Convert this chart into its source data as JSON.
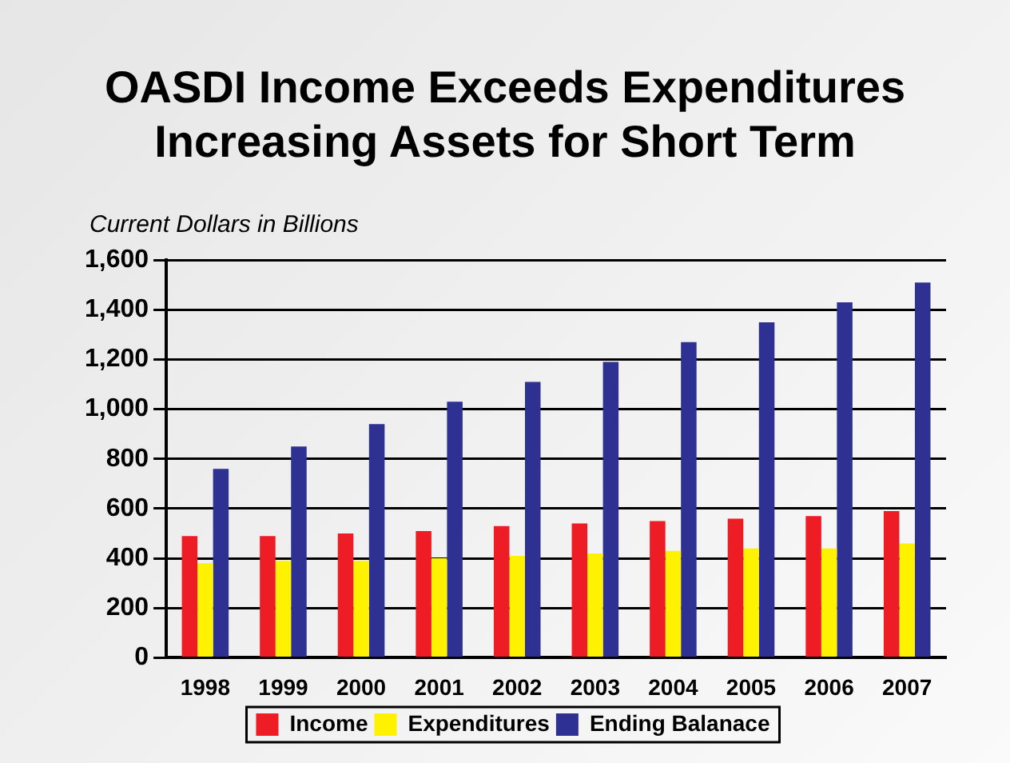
{
  "chart_data": {
    "type": "bar",
    "title": [
      "OASDI Income Exceeds Expenditures",
      "Increasing Assets for Short Term"
    ],
    "ylabel": "Current Dollars in Billions",
    "categories": [
      "1998",
      "1999",
      "2000",
      "2001",
      "2002",
      "2003",
      "2004",
      "2005",
      "2006",
      "2007"
    ],
    "series": [
      {
        "name": "Income",
        "color": "#ee1c24",
        "values": [
          490,
          490,
          500,
          510,
          530,
          540,
          550,
          560,
          570,
          590
        ]
      },
      {
        "name": "Expenditures",
        "color": "#fff200",
        "values": [
          380,
          390,
          390,
          400,
          410,
          420,
          430,
          440,
          440,
          460
        ]
      },
      {
        "name": "Ending Balanace",
        "color": "#2e3192",
        "values": [
          760,
          850,
          940,
          1030,
          1110,
          1190,
          1270,
          1350,
          1430,
          1510
        ]
      }
    ],
    "ylim": [
      0,
      1600
    ],
    "yticks": [
      0,
      {
        "value": 200,
        "label": "200"
      },
      {
        "value": 400,
        "label": "400"
      },
      {
        "value": 600,
        "label": "600"
      },
      {
        "value": 800,
        "label": "800"
      },
      {
        "value": 1000,
        "label": "1,000"
      },
      {
        "value": 1200,
        "label": "1,200"
      },
      {
        "value": 1400,
        "label": "1,400"
      },
      {
        "value": 1600,
        "label": "1,600"
      }
    ],
    "grid": "y",
    "legend": "bottom"
  }
}
